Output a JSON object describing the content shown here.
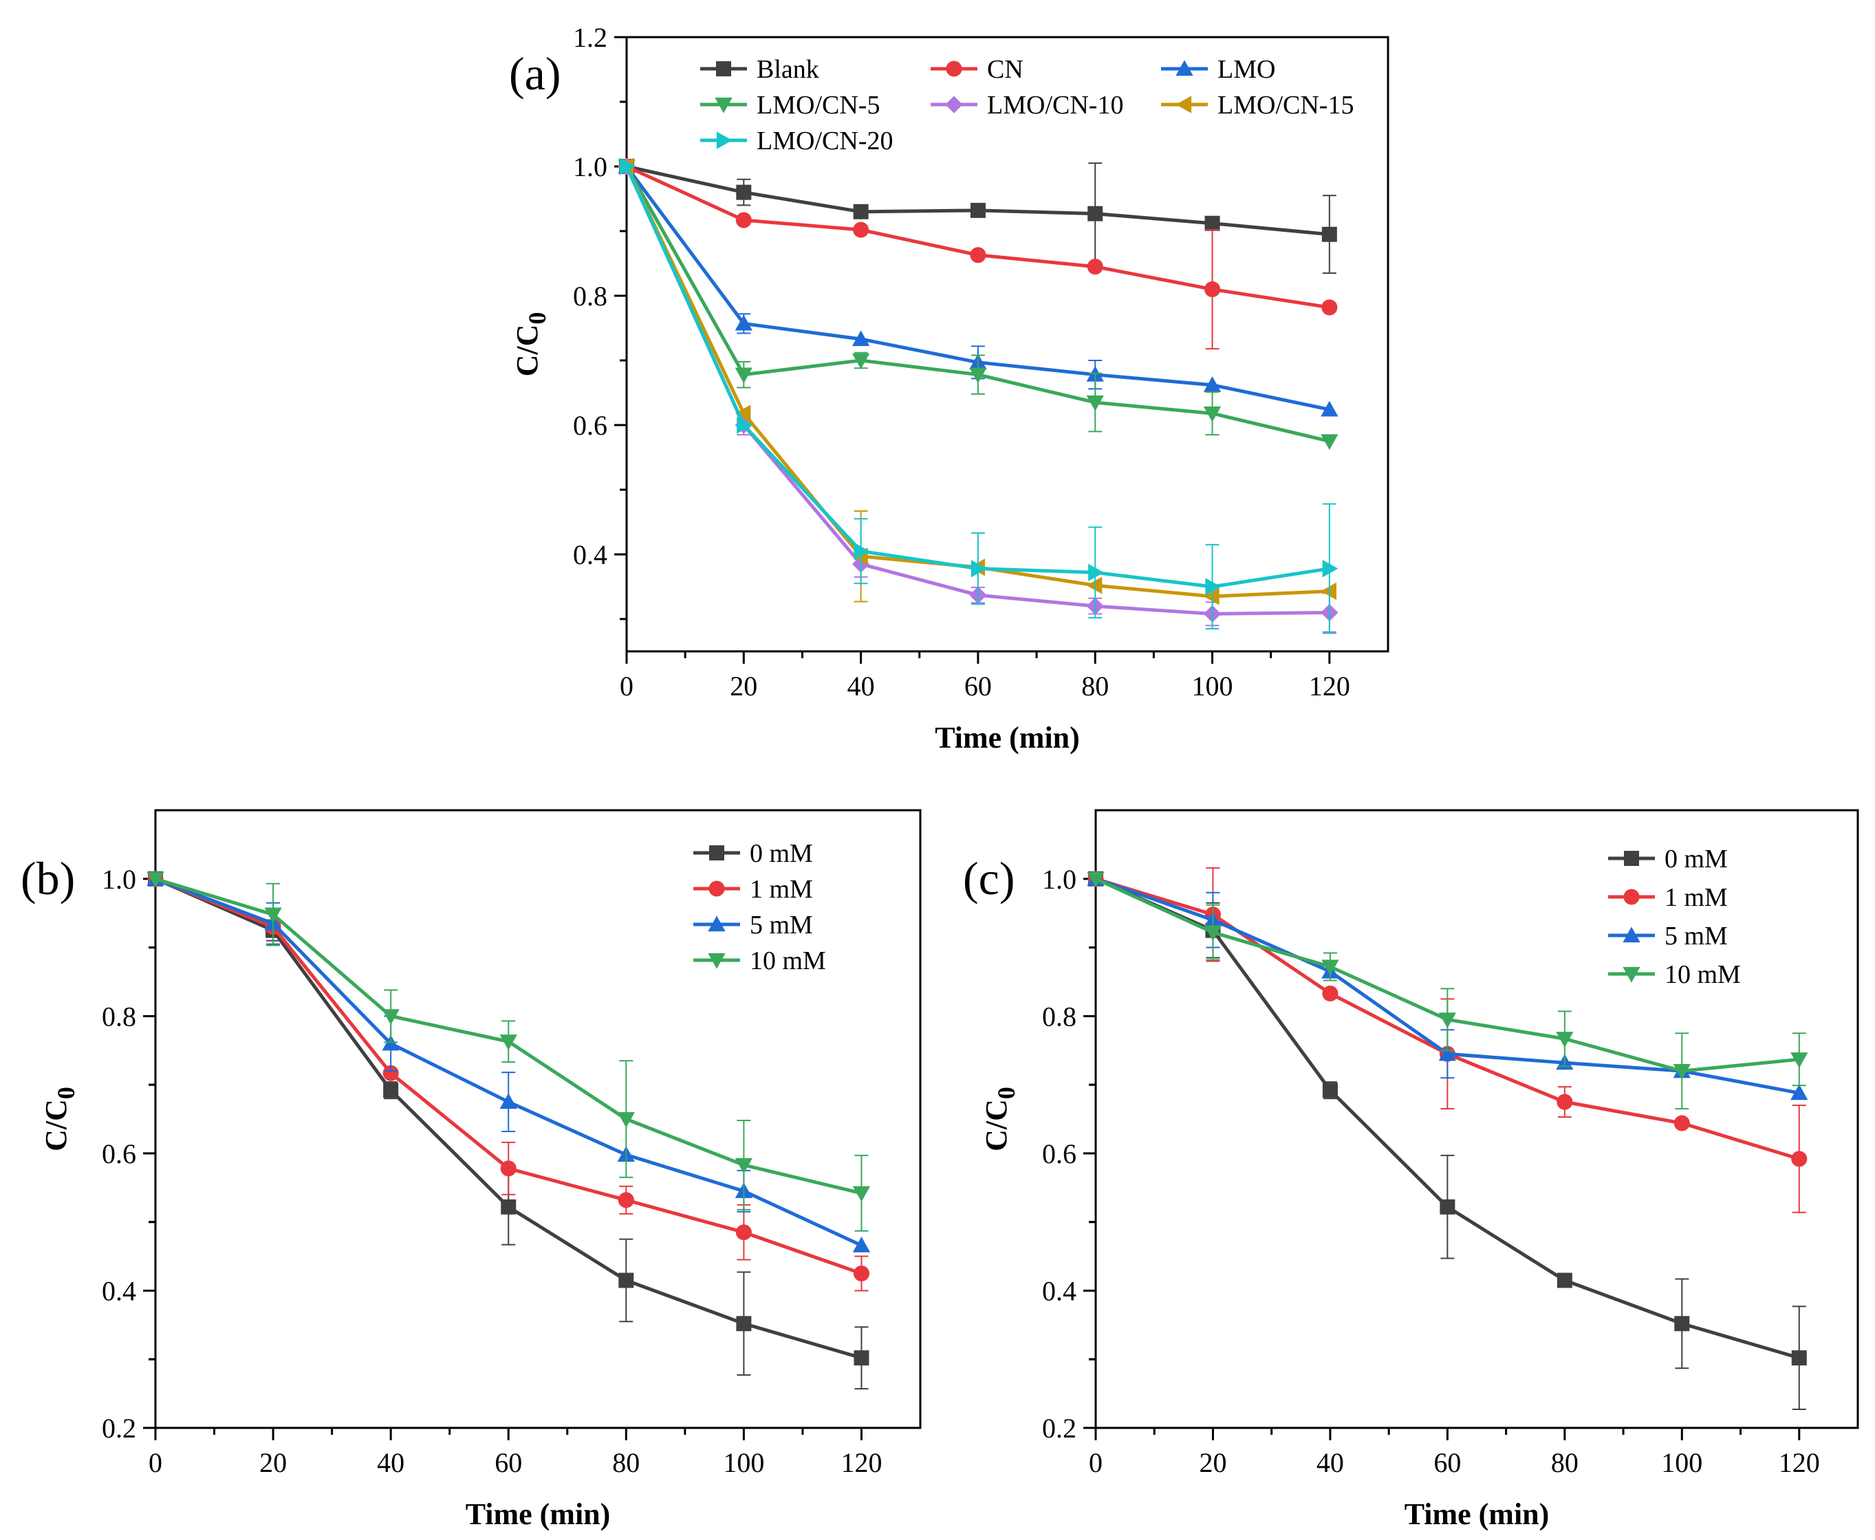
{
  "chart_data": [
    {
      "type": "line",
      "panel_label": "(a)",
      "xlabel": "Time (min)",
      "ylabel": "C/C",
      "ylabel_sub": "0",
      "xlim": [
        0,
        130
      ],
      "ylim": [
        0.25,
        1.2
      ],
      "xticks": [
        0,
        20,
        40,
        60,
        80,
        100,
        120
      ],
      "yticks": [
        0.4,
        0.6,
        0.8,
        1.0,
        1.2
      ],
      "ytick_labels": [
        "0.4",
        "0.6",
        "0.8",
        "1.0",
        "1.2"
      ],
      "x": [
        0,
        20,
        40,
        60,
        80,
        100,
        120
      ],
      "legend_columns": 3,
      "series": [
        {
          "name": "Blank",
          "color": "#404040",
          "marker": "square",
          "values": [
            1.0,
            0.96,
            0.93,
            0.932,
            0.927,
            0.912,
            0.895
          ],
          "errors": [
            0,
            0.02,
            0,
            0,
            0.078,
            0,
            0.06
          ]
        },
        {
          "name": "CN",
          "color": "#e8383d",
          "marker": "circle",
          "values": [
            1.0,
            0.917,
            0.902,
            0.863,
            0.845,
            0.81,
            0.782
          ],
          "errors": [
            0,
            0,
            0,
            0,
            0,
            0.092,
            0
          ]
        },
        {
          "name": "LMO",
          "color": "#1f6bd6",
          "marker": "triangle-up",
          "values": [
            1.0,
            0.757,
            0.733,
            0.697,
            0.678,
            0.662,
            0.624
          ],
          "errors": [
            0,
            0.015,
            0,
            0.025,
            0.022,
            0,
            0
          ]
        },
        {
          "name": "LMO/CN-5",
          "color": "#3aa85a",
          "marker": "triangle-down",
          "values": [
            1.0,
            0.678,
            0.7,
            0.678,
            0.635,
            0.618,
            0.575
          ],
          "errors": [
            0,
            0.02,
            0.012,
            0.03,
            0.045,
            0.033,
            0
          ]
        },
        {
          "name": "LMO/CN-10",
          "color": "#b176e0",
          "marker": "diamond",
          "values": [
            1.0,
            0.6,
            0.385,
            0.337,
            0.32,
            0.308,
            0.31
          ],
          "errors": [
            0,
            0.015,
            0.02,
            0.012,
            0.012,
            0.018,
            0.03
          ]
        },
        {
          "name": "LMO/CN-15",
          "color": "#c8960a",
          "marker": "triangle-left",
          "values": [
            1.0,
            0.618,
            0.397,
            0.38,
            0.352,
            0.335,
            0.343
          ],
          "errors": [
            0,
            0,
            0.07,
            0,
            0,
            0,
            0
          ]
        },
        {
          "name": "LMO/CN-20",
          "color": "#17c4c8",
          "marker": "triangle-right",
          "values": [
            1.0,
            0.6,
            0.405,
            0.378,
            0.372,
            0.35,
            0.378
          ],
          "errors": [
            0,
            0,
            0.05,
            0.055,
            0.07,
            0.065,
            0.1
          ]
        }
      ]
    },
    {
      "type": "line",
      "panel_label": "(b)",
      "xlabel": "Time (min)",
      "ylabel": "C/C",
      "ylabel_sub": "0",
      "xlim": [
        0,
        130
      ],
      "ylim": [
        0.2,
        1.1
      ],
      "xticks": [
        0,
        20,
        40,
        60,
        80,
        100,
        120
      ],
      "yticks": [
        0.2,
        0.4,
        0.6,
        0.8,
        1.0
      ],
      "ytick_labels": [
        "0.2",
        "0.4",
        "0.6",
        "0.8",
        "1.0"
      ],
      "x": [
        0,
        20,
        40,
        60,
        80,
        100,
        120
      ],
      "legend_columns": 1,
      "series": [
        {
          "name": "0 mM",
          "color": "#404040",
          "marker": "square",
          "values": [
            1.0,
            0.925,
            0.692,
            0.522,
            0.415,
            0.352,
            0.302
          ],
          "errors": [
            0,
            0.015,
            0.012,
            0.055,
            0.06,
            0.075,
            0.045
          ]
        },
        {
          "name": "1 mM",
          "color": "#e8383d",
          "marker": "circle",
          "values": [
            1.0,
            0.93,
            0.717,
            0.578,
            0.532,
            0.485,
            0.425
          ],
          "errors": [
            0,
            0,
            0,
            0.038,
            0.02,
            0.04,
            0.025
          ]
        },
        {
          "name": "5 mM",
          "color": "#1f6bd6",
          "marker": "triangle-up",
          "values": [
            1.0,
            0.935,
            0.76,
            0.675,
            0.598,
            0.545,
            0.466
          ],
          "errors": [
            0,
            0.03,
            0.04,
            0.043,
            0,
            0.03,
            0
          ]
        },
        {
          "name": "10 mM",
          "color": "#3aa85a",
          "marker": "triangle-down",
          "values": [
            1.0,
            0.948,
            0.8,
            0.763,
            0.65,
            0.583,
            0.542
          ],
          "errors": [
            0,
            0.045,
            0.038,
            0.03,
            0.085,
            0.065,
            0.055
          ]
        }
      ]
    },
    {
      "type": "line",
      "panel_label": "(c)",
      "xlabel": "Time (min)",
      "ylabel": "C/C",
      "ylabel_sub": "0",
      "xlim": [
        0,
        130
      ],
      "ylim": [
        0.2,
        1.1
      ],
      "xticks": [
        0,
        20,
        40,
        60,
        80,
        100,
        120
      ],
      "yticks": [
        0.2,
        0.4,
        0.6,
        0.8,
        1.0
      ],
      "ytick_labels": [
        "0.2",
        "0.4",
        "0.6",
        "0.8",
        "1.0"
      ],
      "x": [
        0,
        20,
        40,
        60,
        80,
        100,
        120
      ],
      "legend_columns": 1,
      "series": [
        {
          "name": "0 mM",
          "color": "#404040",
          "marker": "square",
          "values": [
            1.0,
            0.925,
            0.692,
            0.522,
            0.415,
            0.352,
            0.302
          ],
          "errors": [
            0,
            0.04,
            0.012,
            0.075,
            0,
            0.065,
            0.075
          ]
        },
        {
          "name": "1 mM",
          "color": "#e8383d",
          "marker": "circle",
          "values": [
            1.0,
            0.948,
            0.833,
            0.745,
            0.675,
            0.644,
            0.592
          ],
          "errors": [
            0,
            0.068,
            0,
            0.08,
            0.022,
            0,
            0.078
          ]
        },
        {
          "name": "5 mM",
          "color": "#1f6bd6",
          "marker": "triangle-up",
          "values": [
            1.0,
            0.94,
            0.865,
            0.745,
            0.732,
            0.72,
            0.688
          ],
          "errors": [
            0,
            0.04,
            0,
            0.035,
            0,
            0,
            0
          ]
        },
        {
          "name": "10 mM",
          "color": "#3aa85a",
          "marker": "triangle-down",
          "values": [
            1.0,
            0.922,
            0.872,
            0.795,
            0.767,
            0.72,
            0.737
          ],
          "errors": [
            0,
            0.04,
            0.02,
            0.045,
            0.04,
            0.055,
            0.038
          ]
        }
      ]
    }
  ]
}
